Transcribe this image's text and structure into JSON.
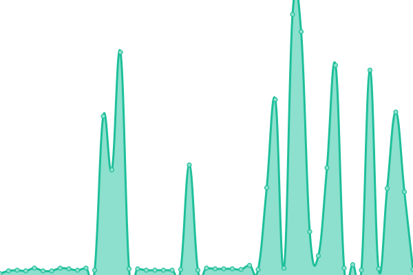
{
  "chart_data": {
    "type": "area",
    "title": "",
    "xlabel": "",
    "ylabel": "",
    "x": [
      0,
      1,
      2,
      3,
      4,
      5,
      6,
      7,
      8,
      9,
      10,
      11,
      12,
      13,
      14,
      15,
      16,
      17,
      18,
      19,
      20,
      21,
      22,
      23,
      24,
      25,
      26,
      27,
      28,
      29,
      30,
      31,
      32,
      33,
      34,
      35,
      36,
      37,
      38,
      39,
      40,
      41,
      42,
      43,
      44,
      45,
      46,
      47,
      48
    ],
    "series": [
      {
        "values": [
          2,
          6,
          7,
          6,
          10,
          6,
          6,
          10,
          9,
          7,
          10,
          7,
          231,
          153,
          324,
          9,
          9,
          7,
          7,
          7,
          7,
          8,
          160,
          7,
          10,
          9,
          9,
          9,
          8,
          14,
          8,
          127,
          255,
          10,
          379,
          354,
          63,
          28,
          156,
          305,
          10,
          15,
          7,
          298,
          9,
          126,
          237,
          121,
          8
        ]
      }
    ],
    "xlim": [
      0,
      48
    ],
    "ylim": [
      0,
      400
    ],
    "grid": false,
    "axes_visible": false,
    "smooth": true,
    "colors": {
      "line": "#1dbf9a",
      "fill": "#8ce0cd",
      "point_fill": "#8ce0cd",
      "point_stroke": "#1dbf9a"
    }
  }
}
